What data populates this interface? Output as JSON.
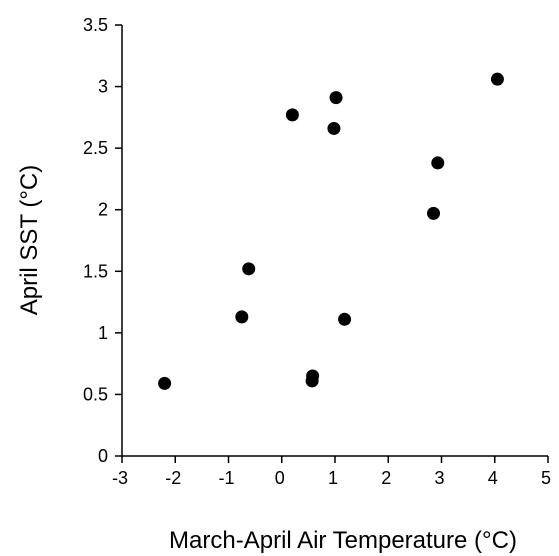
{
  "chart_data": {
    "type": "scatter",
    "title": "",
    "xlabel": "March-April Air Temperature (°C)",
    "ylabel": "April SST (°C)",
    "xlim": [
      -3,
      5
    ],
    "ylim": [
      0,
      3.5
    ],
    "xticks": [
      -3,
      -2,
      -1,
      0,
      1,
      2,
      3,
      4,
      5
    ],
    "yticks": [
      0,
      0.5,
      1,
      1.5,
      2,
      2.5,
      3,
      3.5
    ],
    "xtick_labels": [
      "-3",
      "-2",
      "-1",
      "0",
      "1",
      "2",
      "3",
      "4",
      "5"
    ],
    "ytick_labels": [
      "0",
      "0.5",
      "1",
      "1.5",
      "2",
      "2.5",
      "3",
      "3.5"
    ],
    "grid": false,
    "legend": "none",
    "marker_color": "#000000",
    "points": [
      {
        "x": -2.2,
        "y": 0.59
      },
      {
        "x": -0.75,
        "y": 1.13
      },
      {
        "x": -0.62,
        "y": 1.52
      },
      {
        "x": 0.2,
        "y": 2.77
      },
      {
        "x": 0.57,
        "y": 0.61
      },
      {
        "x": 0.58,
        "y": 0.65
      },
      {
        "x": 0.98,
        "y": 2.66
      },
      {
        "x": 1.02,
        "y": 2.91
      },
      {
        "x": 1.18,
        "y": 1.11
      },
      {
        "x": 2.85,
        "y": 1.97
      },
      {
        "x": 2.93,
        "y": 2.38
      },
      {
        "x": 4.05,
        "y": 3.06
      }
    ]
  }
}
